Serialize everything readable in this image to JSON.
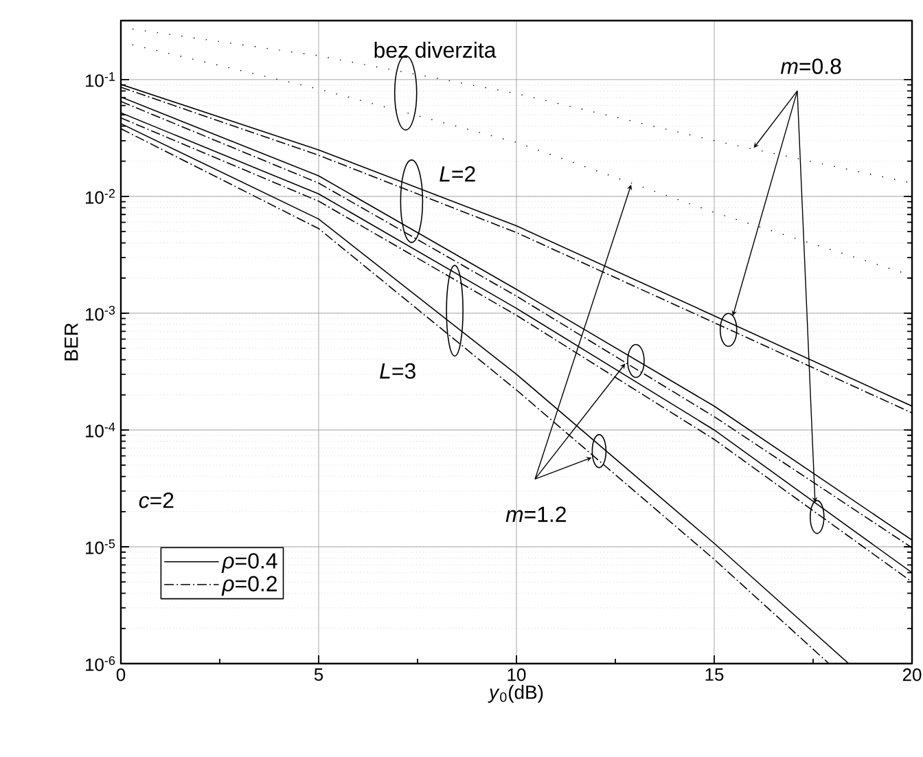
{
  "chart_data": {
    "type": "line",
    "xlabel": "*y*$_{0}$(dB)",
    "ylabel": "BER",
    "x": [
      0,
      5,
      10,
      15,
      20
    ],
    "series": [
      {
        "color": "#000000",
        "line_style": "dotted",
        "values": [
          0.28,
          0.16,
          0.076,
          0.03,
          0.013
        ]
      },
      {
        "color": "#000000",
        "line_style": "dotted",
        "values": [
          0.21,
          0.083,
          0.029,
          0.0073,
          0.0021
        ]
      },
      {
        "name": "*ρ*=0.4",
        "color": "#000000",
        "line_style": "solid",
        "values": [
          0.091,
          0.025,
          0.0056,
          0.00095,
          0.00016
        ]
      },
      {
        "name": "*ρ*=0.2",
        "color": "#000000",
        "line_style": "dashdot",
        "values": [
          0.086,
          0.0225,
          0.0049,
          0.00083,
          0.00014
        ]
      },
      {
        "color": "#000000",
        "line_style": "solid",
        "values": [
          0.071,
          0.015,
          0.0016,
          0.00016,
          1.14e-05
        ]
      },
      {
        "color": "#000000",
        "line_style": "dashdot",
        "values": [
          0.065,
          0.013,
          0.0014,
          0.00013,
          9.8e-06
        ]
      },
      {
        "color": "#000000",
        "line_style": "solid",
        "values": [
          0.052,
          0.0105,
          0.0011,
          0.0001,
          6e-06
        ]
      },
      {
        "color": "#000000",
        "line_style": "dashdot",
        "values": [
          0.047,
          0.0091,
          0.00096,
          8.3e-05,
          5e-06
        ]
      },
      {
        "color": "#000000",
        "line_style": "solid",
        "x": [
          0,
          5,
          10,
          15,
          18.4
        ],
        "values": [
          0.042,
          0.0064,
          0.0003,
          1.07e-05,
          1e-06
        ]
      },
      {
        "color": "#000000",
        "line_style": "dashdot",
        "x": [
          0,
          5,
          10,
          15,
          17.9
        ],
        "values": [
          0.038,
          0.0053,
          0.00022,
          7.8e-06,
          1e-06
        ]
      }
    ],
    "annotations": [
      "bez diverzita",
      "*L*=2",
      "*L*=3",
      {
        "text": "*m*=0.8",
        "x": 16.0,
        "y": 0.026
      },
      {
        "text": "*m*=1.2",
        "x": 12.9,
        "y": 0.0126
      },
      "*c*=2"
    ],
    "xlim": [
      0,
      20
    ],
    "ylim": [
      1e-06,
      0.32
    ],
    "xticks": [
      0,
      {
        "value": 2.5,
        "label": null
      },
      5,
      {
        "value": 7.5,
        "label": null
      },
      10,
      {
        "value": 12.5,
        "label": null
      },
      15,
      {
        "value": 17.5,
        "label": null
      },
      20
    ],
    "yticks": [
      {
        "value": 1e-06,
        "label": "10$^{-6}$"
      },
      {
        "value": 1e-05,
        "label": "10$^{-5}$"
      },
      {
        "value": 0.0001,
        "label": "10$^{-4}$"
      },
      {
        "value": 0.001,
        "label": "10$^{-3}$"
      },
      {
        "value": 0.01,
        "label": "10$^{-2}$"
      },
      {
        "value": 0.1,
        "label": "10$^{-1}$"
      }
    ],
    "log": "y",
    "grid": true,
    "legend": "bottom left"
  }
}
